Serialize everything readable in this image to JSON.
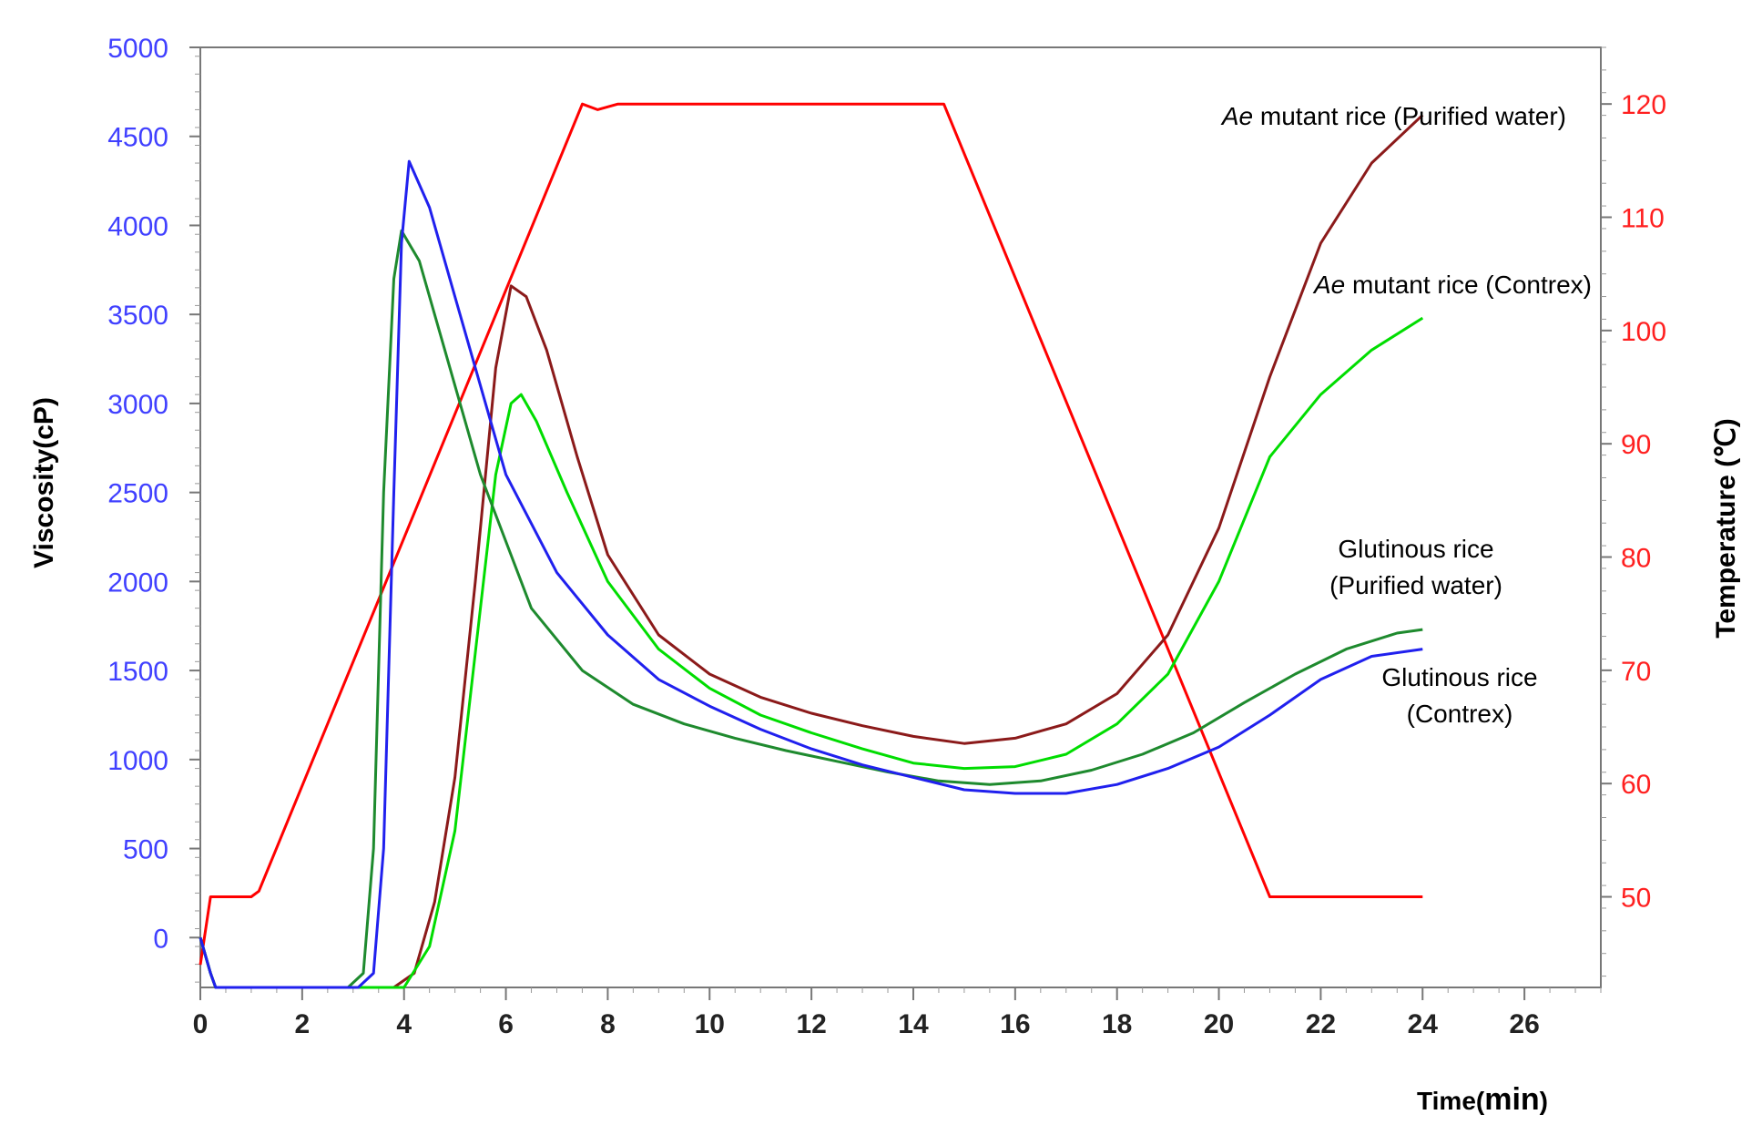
{
  "chart_data": {
    "type": "line",
    "xlabel_prefix": "Time(",
    "xlabel_unit": "min",
    "xlabel_suffix": ")",
    "ylabel_left": "Viscosity(cP)",
    "ylabel_right": "Temperature (℃)",
    "xlim": [
      0,
      27.5
    ],
    "ylim_left": [
      -280,
      5000
    ],
    "ylim_right": [
      42,
      125
    ],
    "x_ticks": [
      0,
      2,
      4,
      6,
      8,
      10,
      12,
      14,
      16,
      18,
      20,
      22,
      24,
      26
    ],
    "y_left_ticks": [
      0,
      500,
      1000,
      1500,
      2000,
      2500,
      3000,
      3500,
      4000,
      4500,
      5000
    ],
    "y_right_ticks": [
      50,
      60,
      70,
      80,
      90,
      100,
      110,
      120
    ],
    "grid": false,
    "annotations": [
      {
        "lines": [
          [
            "Ae",
            " mutant rice (Purified water)"
          ]
        ],
        "anchor": "end"
      },
      {
        "lines": [
          [
            "Ae",
            " mutant rice (Contrex)"
          ]
        ],
        "anchor": "end"
      },
      {
        "lines": [
          [
            "",
            "Glutinous rice"
          ],
          [
            "",
            "(Purified water)"
          ]
        ],
        "anchor": "middle"
      },
      {
        "lines": [
          [
            "",
            "Glutinous rice"
          ],
          [
            "",
            "(Contrex)"
          ]
        ],
        "anchor": "middle"
      }
    ],
    "series": [
      {
        "name": "Temperature",
        "axis": "right",
        "color": "#ff0000",
        "x": [
          0,
          0.2,
          0.8,
          1.0,
          1.15,
          7.5,
          7.8,
          8.2,
          14.6,
          21.0,
          21.3,
          24
        ],
        "y": [
          44,
          50,
          50,
          50,
          50.5,
          120,
          119.5,
          120,
          120,
          50,
          50,
          50
        ]
      },
      {
        "name": "Ae mutant rice (Purified water)",
        "axis": "left",
        "color": "#8b1a1a",
        "x": [
          0,
          0.2,
          0.3,
          3.8,
          4.2,
          4.6,
          5.0,
          5.4,
          5.8,
          6.1,
          6.4,
          6.8,
          7.4,
          8.0,
          9.0,
          10.0,
          11.0,
          12.0,
          13.0,
          14.0,
          15.0,
          16.0,
          17.0,
          18.0,
          19.0,
          20.0,
          21.0,
          22.0,
          23.0,
          24.0
        ],
        "y": [
          0,
          -200,
          -280,
          -280,
          -200,
          200,
          900,
          2000,
          3200,
          3660,
          3600,
          3300,
          2700,
          2150,
          1700,
          1480,
          1350,
          1260,
          1190,
          1130,
          1090,
          1120,
          1200,
          1370,
          1700,
          2300,
          3150,
          3900,
          4350,
          4620
        ]
      },
      {
        "name": "Ae mutant rice (Contrex)",
        "axis": "left",
        "color": "#00dd00",
        "x": [
          0,
          0.2,
          0.3,
          3.5,
          4.0,
          4.5,
          5.0,
          5.4,
          5.8,
          6.1,
          6.3,
          6.6,
          7.2,
          8.0,
          9.0,
          10.0,
          11.0,
          12.0,
          13.0,
          14.0,
          15.0,
          16.0,
          17.0,
          18.0,
          19.0,
          20.0,
          21.0,
          22.0,
          23.0,
          24.0
        ],
        "y": [
          0,
          -200,
          -280,
          -280,
          -280,
          -50,
          600,
          1600,
          2600,
          3000,
          3050,
          2900,
          2500,
          2000,
          1620,
          1400,
          1250,
          1150,
          1060,
          980,
          950,
          960,
          1030,
          1200,
          1480,
          2000,
          2700,
          3050,
          3300,
          3480
        ]
      },
      {
        "name": "Glutinous rice (Purified water)",
        "axis": "left",
        "color": "#1e8a2e",
        "x": [
          0,
          0.2,
          0.3,
          2.9,
          3.2,
          3.4,
          3.6,
          3.8,
          3.95,
          4.3,
          4.8,
          5.5,
          6.5,
          7.5,
          8.5,
          9.5,
          10.5,
          11.5,
          12.5,
          13.5,
          14.5,
          15.5,
          16.5,
          17.5,
          18.5,
          19.5,
          20.5,
          21.5,
          22.5,
          23.5,
          24.0
        ],
        "y": [
          0,
          -200,
          -280,
          -280,
          -200,
          500,
          2500,
          3700,
          3970,
          3800,
          3300,
          2600,
          1850,
          1500,
          1310,
          1200,
          1120,
          1050,
          990,
          930,
          880,
          860,
          880,
          940,
          1030,
          1150,
          1320,
          1480,
          1620,
          1710,
          1730
        ]
      },
      {
        "name": "Glutinous rice (Contrex)",
        "axis": "left",
        "color": "#2020ee",
        "x": [
          0,
          0.2,
          0.3,
          3.1,
          3.4,
          3.6,
          3.8,
          3.95,
          4.1,
          4.5,
          5.0,
          6.0,
          7.0,
          8.0,
          9.0,
          10.0,
          11.0,
          12.0,
          13.0,
          14.0,
          15.0,
          16.0,
          17.0,
          18.0,
          19.0,
          20.0,
          21.0,
          22.0,
          23.0,
          24.0
        ],
        "y": [
          0,
          -200,
          -280,
          -280,
          -200,
          500,
          2500,
          3900,
          4360,
          4100,
          3600,
          2600,
          2050,
          1700,
          1450,
          1300,
          1170,
          1060,
          970,
          900,
          830,
          810,
          810,
          860,
          950,
          1070,
          1250,
          1450,
          1580,
          1620
        ]
      }
    ]
  }
}
